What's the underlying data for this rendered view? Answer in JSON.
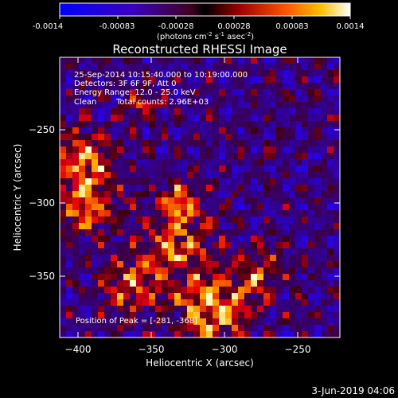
{
  "colorbar": {
    "ticks": [
      "-0.0014",
      "-0.00083",
      "-0.00028",
      "0.00028",
      "0.00083",
      "0.0014"
    ],
    "units": {
      "a": "(photons cm",
      "sup1": "-2",
      "b": " s",
      "sup2": "-1",
      "c": " asec",
      "sup3": "-2",
      "d": ")"
    }
  },
  "chart_data": {
    "type": "heatmap",
    "title": "Reconstructed RHESSI Image",
    "xlabel": "Heliocentric X (arcsec)",
    "ylabel": "Heliocentric Y (arcsec)",
    "xlim": [
      -412,
      -221
    ],
    "ylim": [
      -395,
      -205
    ],
    "xticks": [
      -400,
      -350,
      -300,
      -250
    ],
    "xtick_labels": [
      "−400",
      "−350",
      "−300",
      "−250"
    ],
    "yticks": [
      -250,
      -300,
      -350
    ],
    "ytick_labels": [
      "−250",
      "−300",
      "−350"
    ],
    "colorscale": {
      "min": -0.0014,
      "max": 0.0014
    },
    "grid": false,
    "peak": {
      "x": -281,
      "y": -368
    }
  },
  "annotations": {
    "line1": "25-Sep-2014 10:15:40.000 to 10:19:00.000",
    "line2": "Detectors: 3F 6F 9F, Att 0",
    "line3": "Energy Range: 12.0 - 25.0 keV",
    "line4a": "Clean",
    "line4b": "Total counts: 2.96E+03",
    "peak_label": "Position of Peak = [-281, -368]"
  },
  "footer": {
    "date": "3-Jun-2019 04:06"
  }
}
